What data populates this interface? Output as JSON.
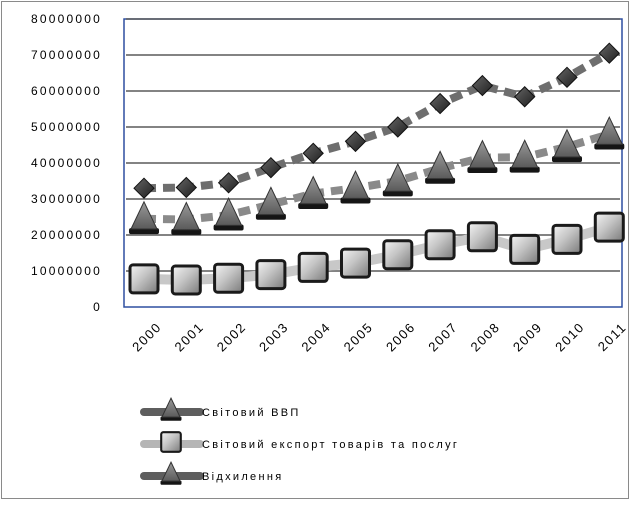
{
  "chart_data": {
    "type": "line",
    "categories": [
      "2000",
      "2001",
      "2002",
      "2003",
      "2004",
      "2005",
      "2006",
      "2007",
      "2008",
      "2009",
      "2010",
      "2011"
    ],
    "ylim": [
      0,
      80000000
    ],
    "yticks": [
      "0",
      "10000000",
      "20000000",
      "30000000",
      "40000000",
      "50000000",
      "60000000",
      "70000000",
      "80000000"
    ],
    "grid": true,
    "legend_position": "bottom",
    "series": [
      {
        "name": "Світовий ВВП",
        "marker": "diamond",
        "color": "#3a3a3a",
        "line_color": "#6e6e6e",
        "values": [
          33000000,
          33200000,
          34500000,
          38700000,
          42700000,
          46000000,
          50000000,
          56500000,
          61500000,
          58400000,
          63800000,
          70500000
        ]
      },
      {
        "name": "Світовий експорт товарів та послуг",
        "marker": "square",
        "color": "#9e9e9e",
        "line_color": "#c8c8c8",
        "values": [
          7800000,
          7500000,
          8000000,
          9000000,
          11000000,
          12200000,
          14500000,
          17300000,
          19500000,
          16000000,
          18800000,
          22200000
        ]
      },
      {
        "name": "Відхилення",
        "marker": "triangle",
        "color": "#6a6a6a",
        "line_color": "#8a8a8a",
        "values": [
          24500000,
          24300000,
          25500000,
          28500000,
          31500000,
          33000000,
          35000000,
          38500000,
          41500000,
          41600000,
          44500000,
          48000000
        ]
      }
    ]
  }
}
